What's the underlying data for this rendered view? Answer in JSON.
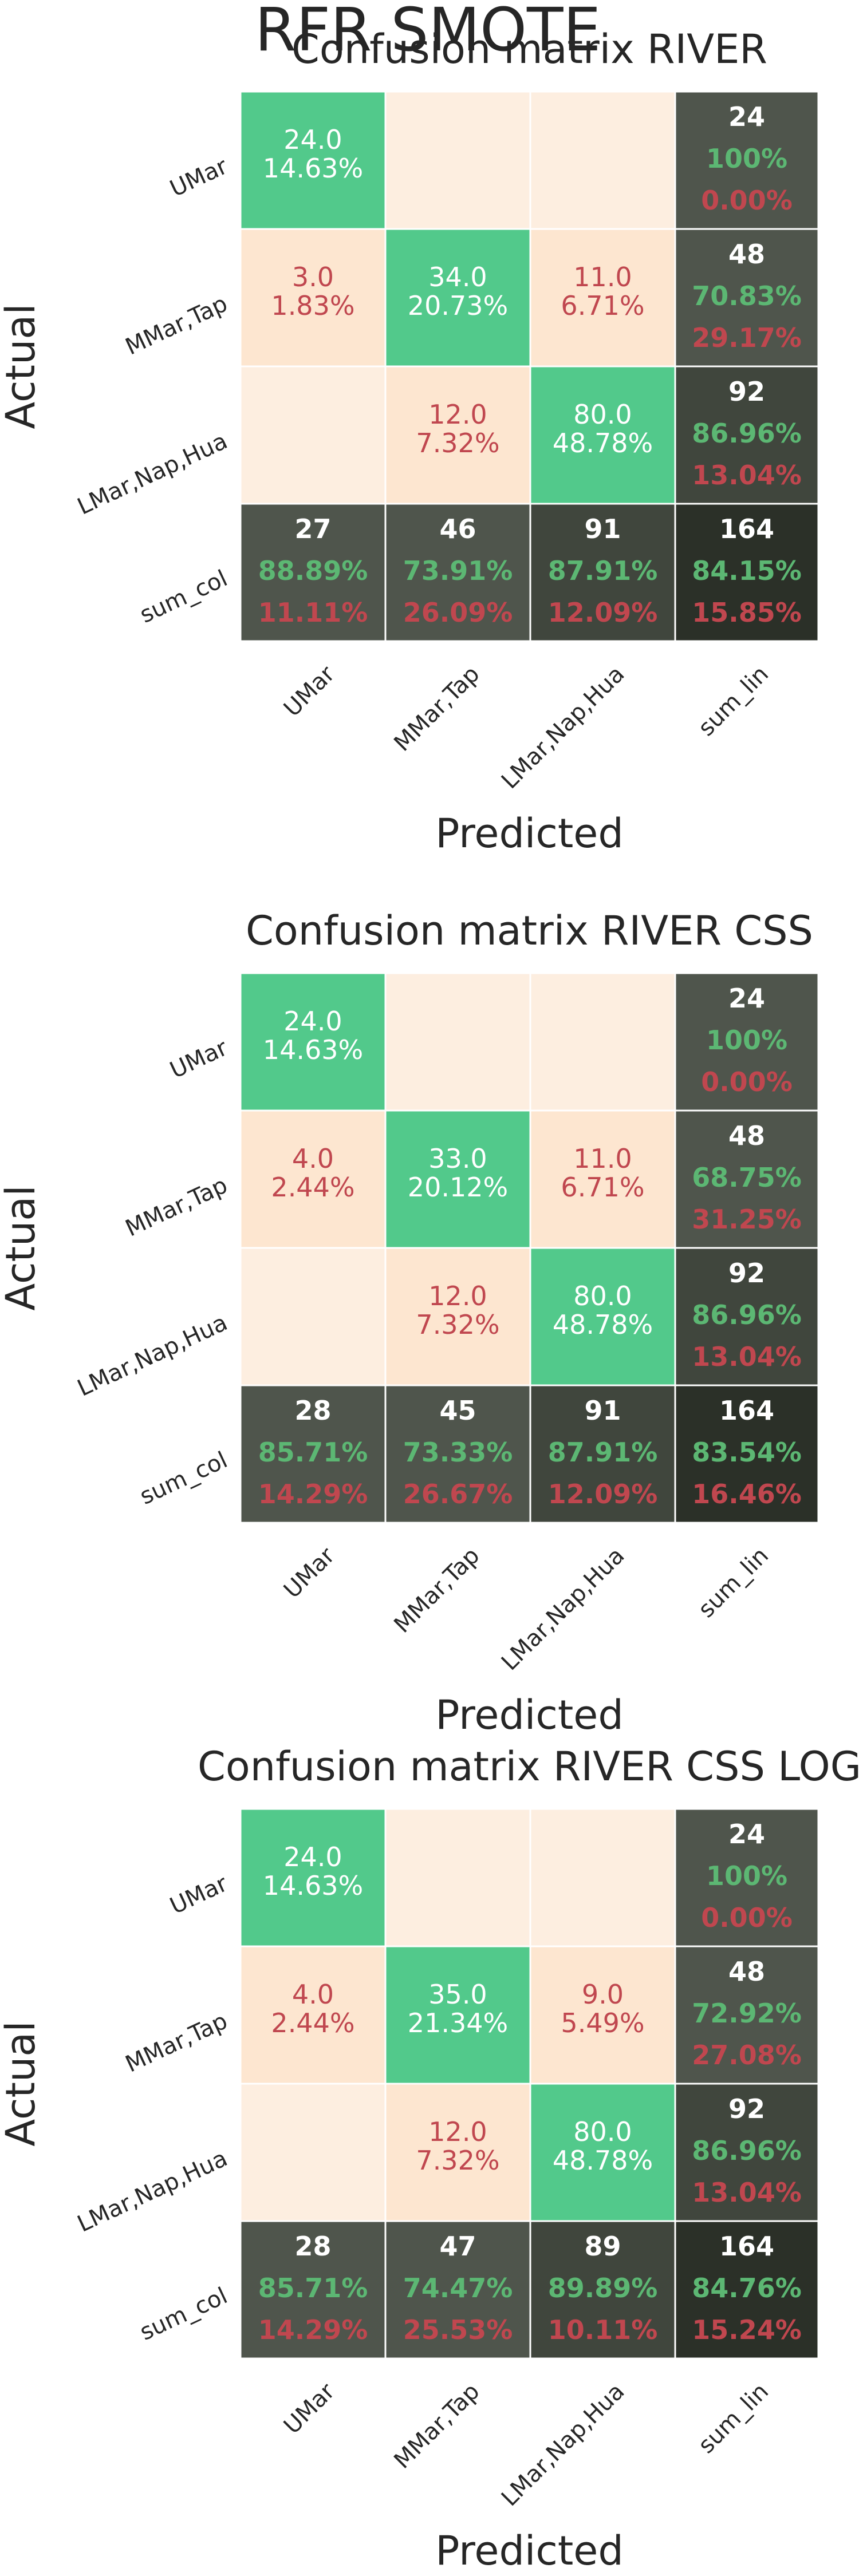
{
  "suptitle": "RFR SMOTE",
  "colors": {
    "diag": "#52c98b",
    "offdiag": "#fdeee0",
    "offdiag_nonzero": "#fde6d0",
    "sum_dark": "#2b3028",
    "sum_mid": "#40463d",
    "sum_light": "#4f554c",
    "text_white": "#ffffff",
    "text_red": "#c0474f",
    "text_green": "#5cb773",
    "text_dark": "#262626"
  },
  "chart_data": [
    {
      "type": "heatmap",
      "title": "Confusion matrix RIVER",
      "xlabel": "Predicted",
      "ylabel": "Actual",
      "row_labels": [
        "UMar",
        "MMar,Tap",
        "LMar,Nap,Hua",
        "sum_col"
      ],
      "col_labels": [
        "UMar",
        "MMar,Tap",
        "LMar,Nap,Hua",
        "sum_lin"
      ],
      "cells": [
        [
          {
            "kind": "diag",
            "lines": [
              "24.0",
              "14.63%"
            ]
          },
          {
            "kind": "empty",
            "lines": []
          },
          {
            "kind": "empty",
            "lines": []
          },
          {
            "kind": "sum",
            "lines": [
              "24",
              "100%",
              "0.00%"
            ]
          }
        ],
        [
          {
            "kind": "off",
            "lines": [
              "3.0",
              "1.83%"
            ]
          },
          {
            "kind": "diag",
            "lines": [
              "34.0",
              "20.73%"
            ]
          },
          {
            "kind": "off",
            "lines": [
              "11.0",
              "6.71%"
            ]
          },
          {
            "kind": "sum",
            "lines": [
              "48",
              "70.83%",
              "29.17%"
            ]
          }
        ],
        [
          {
            "kind": "empty",
            "lines": []
          },
          {
            "kind": "off",
            "lines": [
              "12.0",
              "7.32%"
            ]
          },
          {
            "kind": "diag",
            "lines": [
              "80.0",
              "48.78%"
            ]
          },
          {
            "kind": "sum",
            "lines": [
              "92",
              "86.96%",
              "13.04%"
            ]
          }
        ],
        [
          {
            "kind": "sum",
            "lines": [
              "27",
              "88.89%",
              "11.11%"
            ]
          },
          {
            "kind": "sum",
            "lines": [
              "46",
              "73.91%",
              "26.09%"
            ]
          },
          {
            "kind": "sum",
            "lines": [
              "91",
              "87.91%",
              "12.09%"
            ]
          },
          {
            "kind": "total",
            "lines": [
              "164",
              "84.15%",
              "15.85%"
            ]
          }
        ]
      ]
    },
    {
      "type": "heatmap",
      "title": "Confusion matrix RIVER CSS",
      "xlabel": "Predicted",
      "ylabel": "Actual",
      "row_labels": [
        "UMar",
        "MMar,Tap",
        "LMar,Nap,Hua",
        "sum_col"
      ],
      "col_labels": [
        "UMar",
        "MMar,Tap",
        "LMar,Nap,Hua",
        "sum_lin"
      ],
      "cells": [
        [
          {
            "kind": "diag",
            "lines": [
              "24.0",
              "14.63%"
            ]
          },
          {
            "kind": "empty",
            "lines": []
          },
          {
            "kind": "empty",
            "lines": []
          },
          {
            "kind": "sum",
            "lines": [
              "24",
              "100%",
              "0.00%"
            ]
          }
        ],
        [
          {
            "kind": "off",
            "lines": [
              "4.0",
              "2.44%"
            ]
          },
          {
            "kind": "diag",
            "lines": [
              "33.0",
              "20.12%"
            ]
          },
          {
            "kind": "off",
            "lines": [
              "11.0",
              "6.71%"
            ]
          },
          {
            "kind": "sum",
            "lines": [
              "48",
              "68.75%",
              "31.25%"
            ]
          }
        ],
        [
          {
            "kind": "empty",
            "lines": []
          },
          {
            "kind": "off",
            "lines": [
              "12.0",
              "7.32%"
            ]
          },
          {
            "kind": "diag",
            "lines": [
              "80.0",
              "48.78%"
            ]
          },
          {
            "kind": "sum",
            "lines": [
              "92",
              "86.96%",
              "13.04%"
            ]
          }
        ],
        [
          {
            "kind": "sum",
            "lines": [
              "28",
              "85.71%",
              "14.29%"
            ]
          },
          {
            "kind": "sum",
            "lines": [
              "45",
              "73.33%",
              "26.67%"
            ]
          },
          {
            "kind": "sum",
            "lines": [
              "91",
              "87.91%",
              "12.09%"
            ]
          },
          {
            "kind": "total",
            "lines": [
              "164",
              "83.54%",
              "16.46%"
            ]
          }
        ]
      ]
    },
    {
      "type": "heatmap",
      "title": "Confusion matrix RIVER CSS LOG",
      "xlabel": "Predicted",
      "ylabel": "Actual",
      "row_labels": [
        "UMar",
        "MMar,Tap",
        "LMar,Nap,Hua",
        "sum_col"
      ],
      "col_labels": [
        "UMar",
        "MMar,Tap",
        "LMar,Nap,Hua",
        "sum_lin"
      ],
      "cells": [
        [
          {
            "kind": "diag",
            "lines": [
              "24.0",
              "14.63%"
            ]
          },
          {
            "kind": "empty",
            "lines": []
          },
          {
            "kind": "empty",
            "lines": []
          },
          {
            "kind": "sum",
            "lines": [
              "24",
              "100%",
              "0.00%"
            ]
          }
        ],
        [
          {
            "kind": "off",
            "lines": [
              "4.0",
              "2.44%"
            ]
          },
          {
            "kind": "diag",
            "lines": [
              "35.0",
              "21.34%"
            ]
          },
          {
            "kind": "off",
            "lines": [
              "9.0",
              "5.49%"
            ]
          },
          {
            "kind": "sum",
            "lines": [
              "48",
              "72.92%",
              "27.08%"
            ]
          }
        ],
        [
          {
            "kind": "empty",
            "lines": []
          },
          {
            "kind": "off",
            "lines": [
              "12.0",
              "7.32%"
            ]
          },
          {
            "kind": "diag",
            "lines": [
              "80.0",
              "48.78%"
            ]
          },
          {
            "kind": "sum",
            "lines": [
              "92",
              "86.96%",
              "13.04%"
            ]
          }
        ],
        [
          {
            "kind": "sum",
            "lines": [
              "28",
              "85.71%",
              "14.29%"
            ]
          },
          {
            "kind": "sum",
            "lines": [
              "47",
              "74.47%",
              "25.53%"
            ]
          },
          {
            "kind": "sum",
            "lines": [
              "89",
              "89.89%",
              "10.11%"
            ]
          },
          {
            "kind": "total",
            "lines": [
              "164",
              "84.76%",
              "15.24%"
            ]
          }
        ]
      ]
    }
  ]
}
